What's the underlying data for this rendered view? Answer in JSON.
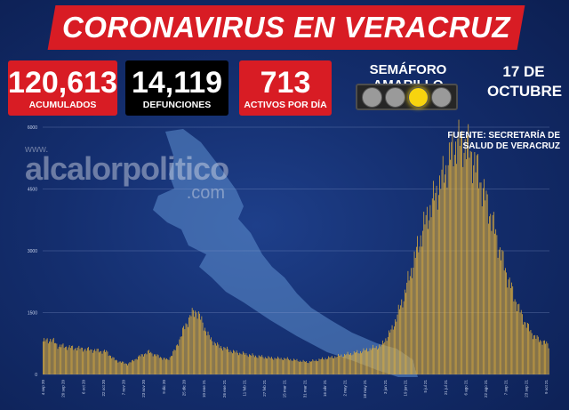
{
  "header": {
    "title": "CORONAVIRUS EN VERACRUZ"
  },
  "stats": [
    {
      "value": "120,613",
      "label": "ACUMULADOS",
      "color": "#d81c24"
    },
    {
      "value": "14,119",
      "label": "DEFUNCIONES",
      "color": "#000000"
    },
    {
      "value": "713",
      "label": "ACTIVOS POR DÍA",
      "color": "#d81c24"
    }
  ],
  "traffic_light": {
    "label": "SEMÁFORO AMARILLO",
    "lamps": 4,
    "active_lamp": 3,
    "active_color": "#f7d40f"
  },
  "date": {
    "line1": "17 DE",
    "line2": "OCTUBRE"
  },
  "source": {
    "line1": "FUENTE: SECRETARÍA DE",
    "line2": "SALUD DE VERACRUZ"
  },
  "watermark": {
    "prefix": "www.",
    "main": "alcalorpolitico",
    "suffix": ".com",
    "mark": "®"
  },
  "chart_data": {
    "type": "bar",
    "ylim": [
      0,
      6000
    ],
    "yticks": [
      "0",
      "1500",
      "3000",
      "4500",
      "6000"
    ],
    "xticks": [
      "4 sep 20",
      "20 sep 20",
      "6 oct 20",
      "22 oct 20",
      "7 nov 20",
      "23 nov 20",
      "9 dic 20",
      "25 dic 20",
      "10 ene 21",
      "26 ene 21",
      "11 feb 21",
      "27 feb 21",
      "15 mar 21",
      "31 mar 21",
      "16 abr 21",
      "2 may 21",
      "18 may 21",
      "3 jun 21",
      "19 jun 21",
      "5 jul 21",
      "21 jul 21",
      "6 ago 21",
      "22 ago 21",
      "7 sep 21",
      "23 sep 21",
      "9 oct 21"
    ],
    "bar_color": "#e6b33a",
    "profile_note": "daily values, 4 sep 2020 to 17 oct 2021",
    "anchors": [
      [
        0,
        800
      ],
      [
        8,
        850
      ],
      [
        14,
        700
      ],
      [
        28,
        650
      ],
      [
        45,
        600
      ],
      [
        60,
        550
      ],
      [
        68,
        350
      ],
      [
        80,
        250
      ],
      [
        92,
        450
      ],
      [
        100,
        550
      ],
      [
        108,
        450
      ],
      [
        118,
        350
      ],
      [
        125,
        600
      ],
      [
        133,
        1100
      ],
      [
        140,
        1450
      ],
      [
        145,
        1550
      ],
      [
        150,
        1300
      ],
      [
        157,
        900
      ],
      [
        165,
        700
      ],
      [
        180,
        550
      ],
      [
        200,
        450
      ],
      [
        215,
        400
      ],
      [
        230,
        380
      ],
      [
        250,
        300
      ],
      [
        265,
        380
      ],
      [
        280,
        450
      ],
      [
        300,
        550
      ],
      [
        320,
        700
      ],
      [
        330,
        1100
      ],
      [
        340,
        1800
      ],
      [
        350,
        2700
      ],
      [
        360,
        3600
      ],
      [
        370,
        4300
      ],
      [
        378,
        4800
      ],
      [
        385,
        5300
      ],
      [
        390,
        5600
      ],
      [
        396,
        5650
      ],
      [
        402,
        5500
      ],
      [
        410,
        5000
      ],
      [
        418,
        4300
      ],
      [
        425,
        3700
      ],
      [
        432,
        3000
      ],
      [
        440,
        2300
      ],
      [
        448,
        1700
      ],
      [
        455,
        1300
      ],
      [
        462,
        1000
      ],
      [
        468,
        850
      ],
      [
        473,
        800
      ],
      [
        478,
        700
      ]
    ]
  }
}
